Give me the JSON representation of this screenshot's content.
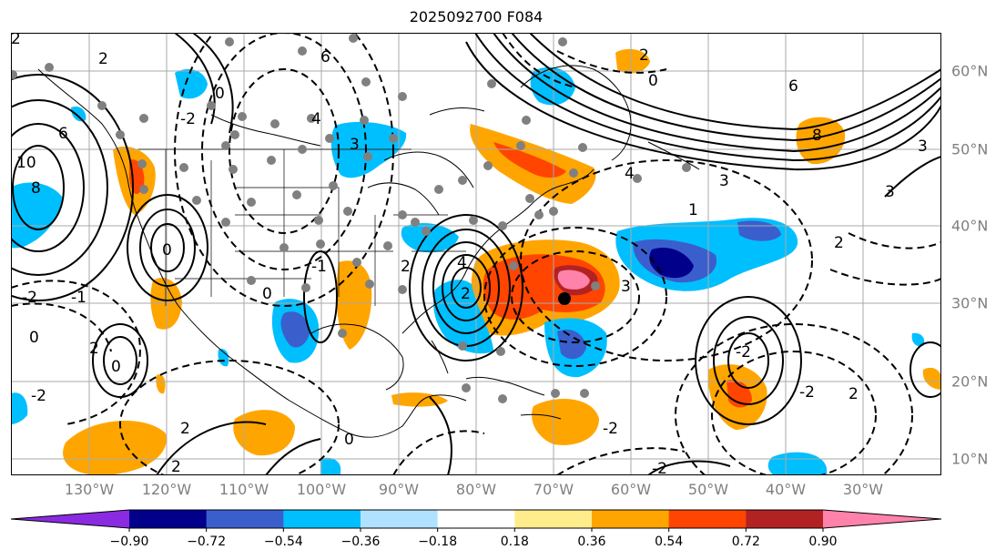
{
  "title": "2025092700 F084",
  "lat_labels": [
    "60°N",
    "50°N",
    "40°N",
    "30°N",
    "20°N",
    "10°N"
  ],
  "lon_labels": [
    "130°W",
    "120°W",
    "110°W",
    "100°W",
    "90°W",
    "80°W",
    "70°W",
    "60°W",
    "50°W",
    "40°W",
    "30°W"
  ],
  "colorbar": {
    "colors": [
      "#8a2be2",
      "#00008b",
      "#3a5fcd",
      "#00bfff",
      "#b0e2ff",
      "#ffffff",
      "#ffec8b",
      "#ffa500",
      "#ff4500",
      "#b22222",
      "#ff82ab"
    ],
    "tick_labels": [
      "−0.90",
      "−0.72",
      "−0.54",
      "−0.36",
      "−0.18",
      "0.18",
      "0.36",
      "0.54",
      "0.72",
      "0.90"
    ]
  },
  "contour_labels": [
    "0",
    "-2",
    "2",
    "4",
    "6",
    "8",
    "10",
    "-1",
    "1",
    "3",
    "-3"
  ]
}
